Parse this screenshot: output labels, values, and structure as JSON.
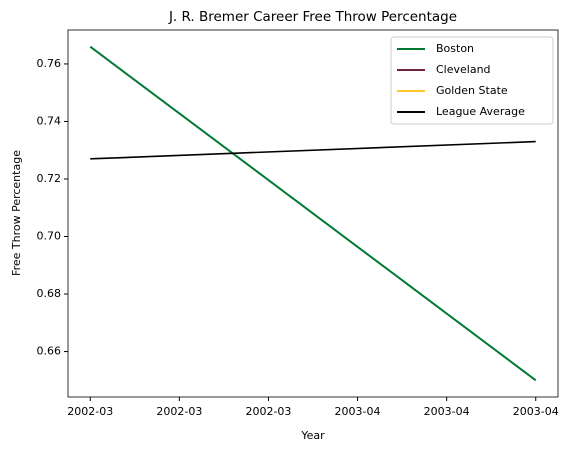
{
  "chart_data": {
    "type": "line",
    "title": "J. R. Bremer Career Free Throw Percentage",
    "x_label": "Year",
    "y_label": "Free Throw Percentage",
    "x": [
      0,
      1
    ],
    "series": [
      {
        "name": "Boston",
        "color": "#007a33",
        "values": [
          0.766,
          0.65
        ]
      },
      {
        "name": "Cleveland",
        "color": "#6f263d",
        "values": [
          null,
          null
        ]
      },
      {
        "name": "Golden State",
        "color": "#ffc72c",
        "values": [
          null,
          null
        ]
      },
      {
        "name": "League Average",
        "color": "#000000",
        "values": [
          0.727,
          0.733
        ]
      }
    ],
    "xlim": [
      -0.05,
      1.05
    ],
    "xticks": [
      {
        "value": 0,
        "label": "2002-03"
      },
      {
        "value": 0.2,
        "label": "2002-03"
      },
      {
        "value": 0.4,
        "label": "2002-03"
      },
      {
        "value": 0.6,
        "label": "2003-04"
      },
      {
        "value": 0.8,
        "label": "2003-04"
      },
      {
        "value": 1.0,
        "label": "2003-04"
      }
    ],
    "ylim": [
      0.6442,
      0.7718
    ],
    "yticks": [
      0.66,
      0.68,
      {
        "value": 0.7,
        "label": "0.70"
      },
      0.72,
      0.74,
      0.76
    ],
    "legend": "upper right",
    "grid": false
  }
}
